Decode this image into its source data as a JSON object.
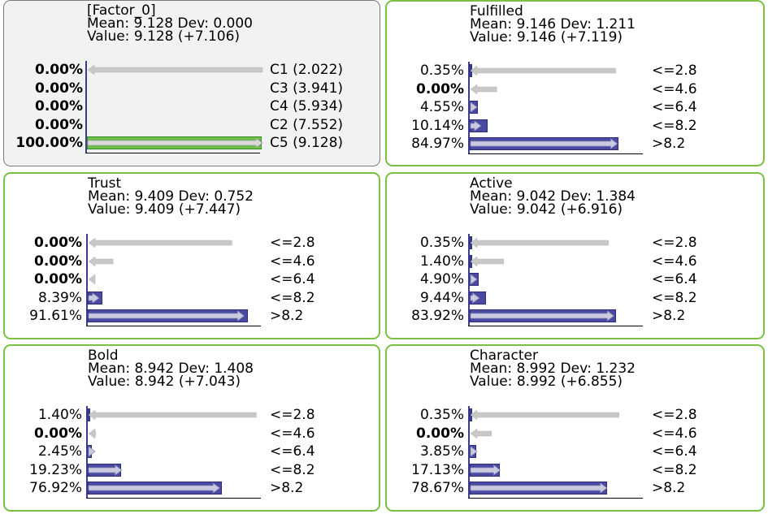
{
  "colors": {
    "node_border": "#7ac143",
    "factor_bg": "#f1f2f2",
    "bar_blue": "#4a4aa3",
    "bar_green": "#6cc04a",
    "arrow_gray": "#c8c8c8"
  },
  "nodes": [
    {
      "name": "[Factor_0]",
      "mean_line": "Mean: 9.128 Dev: 0.000",
      "value_line": "Value: 9.128 (+7.106)",
      "selected": true,
      "rows": [
        {
          "pct": "0.00%",
          "label": "C1 (2.022)",
          "prob": 0.0,
          "arrow": -1.0,
          "bold": true
        },
        {
          "pct": "0.00%",
          "label": "C3 (3.941)",
          "prob": 0.0,
          "arrow": 0.0,
          "bold": true
        },
        {
          "pct": "0.00%",
          "label": "C4 (5.934)",
          "prob": 0.0,
          "arrow": 0.0,
          "bold": true
        },
        {
          "pct": "0.00%",
          "label": "C2 (7.552)",
          "prob": 0.0,
          "arrow": 0.0,
          "bold": true
        },
        {
          "pct": "100.00%",
          "label": "C5 (9.128)",
          "prob": 1.0,
          "arrow": 1.0,
          "bold": true
        }
      ]
    },
    {
      "name": "Fulfilled",
      "mean_line": "Mean: 9.146 Dev: 1.211",
      "value_line": "Value: 9.146 (+7.119)",
      "selected": false,
      "rows": [
        {
          "pct": "0.35%",
          "label": "<=2.8",
          "prob": 0.0035,
          "arrow": -0.83,
          "bold": false
        },
        {
          "pct": "0.00%",
          "label": "<=4.6",
          "prob": 0.0,
          "arrow": -0.15,
          "bold": true
        },
        {
          "pct": "4.55%",
          "label": "<=6.4",
          "prob": 0.0455,
          "arrow": 0.02,
          "bold": false
        },
        {
          "pct": "10.14%",
          "label": "<=8.2",
          "prob": 0.1014,
          "arrow": 0.06,
          "bold": false
        },
        {
          "pct": "84.97%",
          "label": ">8.2",
          "prob": 0.8497,
          "arrow": 0.84,
          "bold": false
        }
      ]
    },
    {
      "name": "Trust",
      "mean_line": "Mean: 9.409 Dev: 0.752",
      "value_line": "Value: 9.409 (+7.447)",
      "selected": false,
      "rows": [
        {
          "pct": "0.00%",
          "label": "<=2.8",
          "prob": 0.0,
          "arrow": -0.82,
          "bold": true
        },
        {
          "pct": "0.00%",
          "label": "<=4.6",
          "prob": 0.0,
          "arrow": -0.14,
          "bold": true
        },
        {
          "pct": "0.00%",
          "label": "<=6.4",
          "prob": 0.0,
          "arrow": -0.02,
          "bold": true
        },
        {
          "pct": "8.39%",
          "label": "<=8.2",
          "prob": 0.0839,
          "arrow": 0.06,
          "bold": false
        },
        {
          "pct": "91.61%",
          "label": ">8.2",
          "prob": 0.9161,
          "arrow": 0.89,
          "bold": false
        }
      ]
    },
    {
      "name": "Active",
      "mean_line": "Mean: 9.042 Dev: 1.384",
      "value_line": "Value: 9.042 (+6.916)",
      "selected": false,
      "rows": [
        {
          "pct": "0.35%",
          "label": "<=2.8",
          "prob": 0.0035,
          "arrow": -0.79,
          "bold": false
        },
        {
          "pct": "1.40%",
          "label": "<=4.6",
          "prob": 0.014,
          "arrow": -0.19,
          "bold": false
        },
        {
          "pct": "4.90%",
          "label": "<=6.4",
          "prob": 0.049,
          "arrow": 0.02,
          "bold": false
        },
        {
          "pct": "9.44%",
          "label": "<=8.2",
          "prob": 0.0944,
          "arrow": 0.05,
          "bold": false
        },
        {
          "pct": "83.92%",
          "label": ">8.2",
          "prob": 0.8392,
          "arrow": 0.82,
          "bold": false
        }
      ]
    },
    {
      "name": "Bold",
      "mean_line": "Mean: 8.942 Dev: 1.408",
      "value_line": "Value: 8.942 (+7.043)",
      "selected": false,
      "rows": [
        {
          "pct": "1.40%",
          "label": "<=2.8",
          "prob": 0.014,
          "arrow": -0.96,
          "bold": false
        },
        {
          "pct": "0.00%",
          "label": "<=4.6",
          "prob": 0.0,
          "arrow": -0.04,
          "bold": true
        },
        {
          "pct": "2.45%",
          "label": "<=6.4",
          "prob": 0.0245,
          "arrow": 0.02,
          "bold": false
        },
        {
          "pct": "19.23%",
          "label": "<=8.2",
          "prob": 0.1923,
          "arrow": 0.19,
          "bold": false
        },
        {
          "pct": "76.92%",
          "label": ">8.2",
          "prob": 0.7692,
          "arrow": 0.75,
          "bold": false
        }
      ]
    },
    {
      "name": "Character",
      "mean_line": "Mean: 8.992 Dev: 1.232",
      "value_line": "Value: 8.992 (+6.855)",
      "selected": false,
      "rows": [
        {
          "pct": "0.35%",
          "label": "<=2.8",
          "prob": 0.0035,
          "arrow": -0.85,
          "bold": false
        },
        {
          "pct": "0.00%",
          "label": "<=4.6",
          "prob": 0.0,
          "arrow": -0.12,
          "bold": true
        },
        {
          "pct": "3.85%",
          "label": "<=6.4",
          "prob": 0.0385,
          "arrow": 0.02,
          "bold": false
        },
        {
          "pct": "17.13%",
          "label": "<=8.2",
          "prob": 0.1713,
          "arrow": 0.17,
          "bold": false
        },
        {
          "pct": "78.67%",
          "label": ">8.2",
          "prob": 0.7867,
          "arrow": 0.78,
          "bold": false
        }
      ]
    }
  ]
}
